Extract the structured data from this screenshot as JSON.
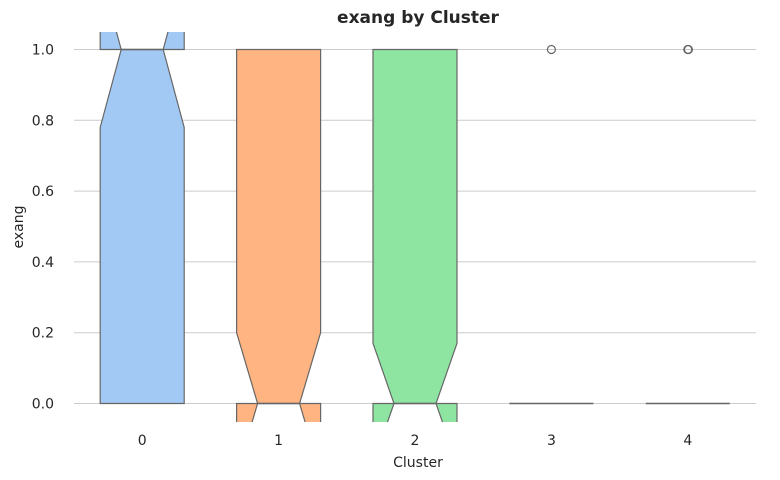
{
  "chart_data": {
    "type": "box",
    "title": "exang by Cluster",
    "xlabel": "Cluster",
    "ylabel": "exang",
    "categories": [
      "0",
      "1",
      "2",
      "3",
      "4"
    ],
    "ylim": [
      -0.05,
      1.05
    ],
    "yticks": [
      "0.0",
      "0.2",
      "0.4",
      "0.6",
      "0.8",
      "1.0"
    ],
    "ytick_values": [
      0.0,
      0.2,
      0.4,
      0.6,
      0.8,
      1.0
    ],
    "grid": "horizontal",
    "notch": true,
    "colors": [
      "#a1c9f4",
      "#ffb482",
      "#8de5a1",
      "#ff9f9b",
      "#d0bbff"
    ],
    "boxes": [
      {
        "q1": 0.0,
        "median": 1.0,
        "q3": 1.0,
        "notch_low": 0.78,
        "notch_high": 1.22,
        "fliers": []
      },
      {
        "q1": 0.0,
        "median": 0.0,
        "q3": 1.0,
        "notch_low": -0.2,
        "notch_high": 0.2,
        "fliers": []
      },
      {
        "q1": 0.0,
        "median": 0.0,
        "q3": 1.0,
        "notch_low": -0.17,
        "notch_high": 0.17,
        "fliers": []
      },
      {
        "q1": 0.0,
        "median": 0.0,
        "q3": 0.0,
        "notch_low": 0.0,
        "notch_high": 0.0,
        "fliers": [
          1.0
        ]
      },
      {
        "q1": 0.0,
        "median": 0.0,
        "q3": 0.0,
        "notch_low": 0.0,
        "notch_high": 0.0,
        "fliers": [
          1.0,
          1.0
        ]
      }
    ]
  }
}
